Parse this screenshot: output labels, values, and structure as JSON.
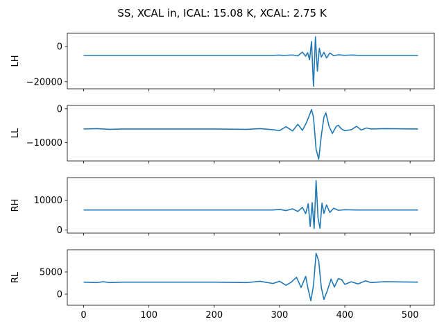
{
  "chart_data": {
    "type": "line",
    "title": "SS, XCAL in, ICAL: 15.08 K, XCAL: 2.75 K",
    "xlim": [
      -25,
      537
    ],
    "x_ticks": [
      0,
      100,
      200,
      300,
      400,
      500
    ],
    "x_tick_labels": [
      "0",
      "100",
      "200",
      "300",
      "400",
      "500"
    ],
    "grid": false,
    "line_color": "#1f77b4",
    "panels": [
      {
        "name": "LH",
        "ylabel": "LH",
        "ylim": [
          -24000,
          7500
        ],
        "y_ticks": [
          -20000,
          0
        ],
        "y_tick_labels": [
          "−20000",
          "0"
        ],
        "baseline": -5000,
        "points": [
          [
            0,
            -5000
          ],
          [
            100,
            -5000
          ],
          [
            200,
            -5000
          ],
          [
            290,
            -5000
          ],
          [
            300,
            -4850
          ],
          [
            305,
            -5050
          ],
          [
            320,
            -4800
          ],
          [
            328,
            -5300
          ],
          [
            335,
            -3200
          ],
          [
            340,
            -5500
          ],
          [
            343,
            -3500
          ],
          [
            346,
            -7500
          ],
          [
            349,
            2800
          ],
          [
            352,
            -22500
          ],
          [
            355,
            5500
          ],
          [
            358,
            -14000
          ],
          [
            361,
            -1000
          ],
          [
            364,
            -6000
          ],
          [
            368,
            -3300
          ],
          [
            372,
            -6500
          ],
          [
            377,
            -3700
          ],
          [
            383,
            -5200
          ],
          [
            390,
            -4700
          ],
          [
            400,
            -5000
          ],
          [
            410,
            -4800
          ],
          [
            420,
            -5000
          ],
          [
            440,
            -5000
          ],
          [
            512,
            -5000
          ]
        ]
      },
      {
        "name": "LL",
        "ylabel": "LL",
        "ylim": [
          -15500,
          1000
        ],
        "y_ticks": [
          -10000,
          0
        ],
        "y_tick_labels": [
          "−10000",
          "0"
        ],
        "baseline": -6000,
        "points": [
          [
            0,
            -6000
          ],
          [
            20,
            -5900
          ],
          [
            40,
            -6100
          ],
          [
            60,
            -6000
          ],
          [
            100,
            -6000
          ],
          [
            200,
            -6000
          ],
          [
            250,
            -6100
          ],
          [
            270,
            -5900
          ],
          [
            290,
            -6200
          ],
          [
            300,
            -6500
          ],
          [
            310,
            -5300
          ],
          [
            320,
            -6600
          ],
          [
            328,
            -4600
          ],
          [
            335,
            -6400
          ],
          [
            341,
            -4200
          ],
          [
            346,
            -1800
          ],
          [
            349,
            -200
          ],
          [
            352,
            -2500
          ],
          [
            356,
            -12000
          ],
          [
            360,
            -15000
          ],
          [
            364,
            -8000
          ],
          [
            368,
            -2500
          ],
          [
            371,
            -1200
          ],
          [
            376,
            -5300
          ],
          [
            381,
            -7300
          ],
          [
            387,
            -5200
          ],
          [
            390,
            -4900
          ],
          [
            395,
            -6000
          ],
          [
            400,
            -6500
          ],
          [
            410,
            -6200
          ],
          [
            418,
            -5200
          ],
          [
            425,
            -6300
          ],
          [
            433,
            -5700
          ],
          [
            440,
            -6000
          ],
          [
            460,
            -5900
          ],
          [
            512,
            -6000
          ]
        ]
      },
      {
        "name": "RH",
        "ylabel": "RH",
        "ylim": [
          -1000,
          17500
        ],
        "y_ticks": [
          0,
          10000
        ],
        "y_tick_labels": [
          "0",
          "10000"
        ],
        "baseline": 6700,
        "points": [
          [
            0,
            6700
          ],
          [
            100,
            6700
          ],
          [
            200,
            6700
          ],
          [
            290,
            6700
          ],
          [
            300,
            6900
          ],
          [
            310,
            6500
          ],
          [
            320,
            7100
          ],
          [
            328,
            6200
          ],
          [
            335,
            7600
          ],
          [
            340,
            5500
          ],
          [
            344,
            8800
          ],
          [
            347,
            1200
          ],
          [
            350,
            9200
          ],
          [
            353,
            500
          ],
          [
            356,
            16500
          ],
          [
            359,
            4000
          ],
          [
            362,
            600
          ],
          [
            365,
            9000
          ],
          [
            368,
            5600
          ],
          [
            372,
            8400
          ],
          [
            377,
            5900
          ],
          [
            383,
            7300
          ],
          [
            390,
            6600
          ],
          [
            400,
            6800
          ],
          [
            420,
            6700
          ],
          [
            512,
            6700
          ]
        ]
      },
      {
        "name": "RL",
        "ylabel": "RL",
        "ylim": [
          -2500,
          10000
        ],
        "y_ticks": [
          0,
          5000
        ],
        "y_tick_labels": [
          "0",
          "5000"
        ],
        "baseline": 2700,
        "points": [
          [
            0,
            2700
          ],
          [
            20,
            2600
          ],
          [
            30,
            2800
          ],
          [
            40,
            2600
          ],
          [
            60,
            2700
          ],
          [
            100,
            2700
          ],
          [
            200,
            2700
          ],
          [
            250,
            2600
          ],
          [
            270,
            2900
          ],
          [
            290,
            2400
          ],
          [
            300,
            2900
          ],
          [
            310,
            2000
          ],
          [
            318,
            2700
          ],
          [
            326,
            3800
          ],
          [
            333,
            1500
          ],
          [
            340,
            4000
          ],
          [
            344,
            1000
          ],
          [
            348,
            -1500
          ],
          [
            352,
            2000
          ],
          [
            356,
            9200
          ],
          [
            360,
            7500
          ],
          [
            364,
            1500
          ],
          [
            368,
            -1200
          ],
          [
            373,
            700
          ],
          [
            379,
            3400
          ],
          [
            384,
            1600
          ],
          [
            390,
            3500
          ],
          [
            395,
            3300
          ],
          [
            400,
            2200
          ],
          [
            410,
            2800
          ],
          [
            420,
            2300
          ],
          [
            432,
            3000
          ],
          [
            440,
            2600
          ],
          [
            460,
            2800
          ],
          [
            512,
            2700
          ]
        ]
      }
    ]
  }
}
